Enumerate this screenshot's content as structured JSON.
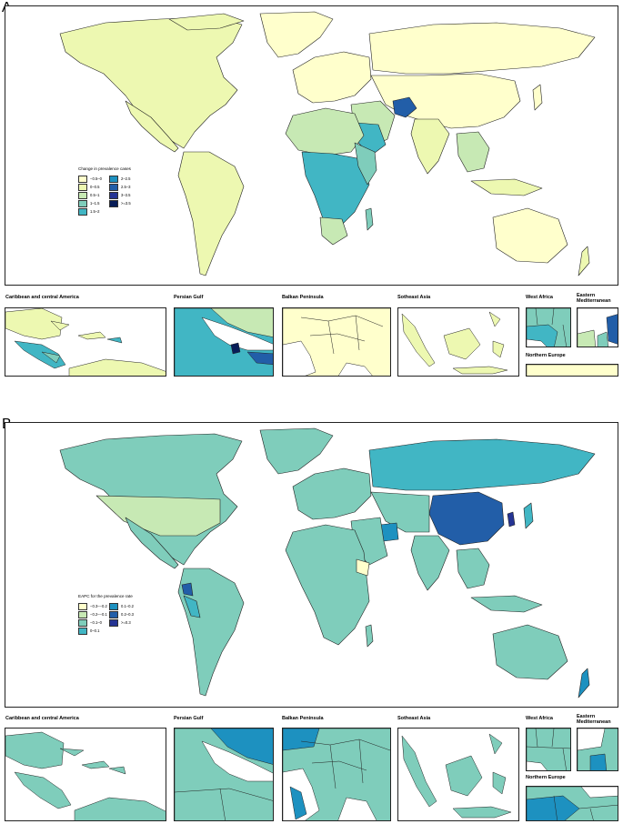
{
  "colors": {
    "pale": "#ffffcc",
    "c1": "#d9f0a3",
    "c2": "#c7e9b4",
    "c3": "#7fcdbb",
    "c4": "#41b6c4",
    "c5": "#1d91c0",
    "c6": "#225ea8",
    "c7": "#253494",
    "c8": "#081d58"
  },
  "panel_a": {
    "letter": "A",
    "legend": {
      "title": "Change in prevalence cases",
      "items": [
        {
          "label": "−0.5–0",
          "color": "#ffffcc"
        },
        {
          "label": "0–0.5",
          "color": "#edf8b1"
        },
        {
          "label": "0.5–1",
          "color": "#c7e9b4"
        },
        {
          "label": "1–1.5",
          "color": "#7fcdbb"
        },
        {
          "label": "1.5–2",
          "color": "#41b6c4"
        },
        {
          "label": "2–2.5",
          "color": "#1d91c0"
        },
        {
          "label": "2.5–3",
          "color": "#225ea8"
        },
        {
          "label": "3–3.5",
          "color": "#253494"
        },
        {
          "label": ">=3.5",
          "color": "#081d58"
        }
      ]
    },
    "insets": {
      "caribbean": "Caribbean and central America",
      "persian_gulf": "Persian Gulf",
      "balkan": "Balkan Peninsula",
      "southeast_asia": "Sotheast Asia",
      "west_africa": "West Africa",
      "eastern_med_line1": "Eastern",
      "eastern_med_line2": "Mediterranean",
      "northern_europe": "Northern Europe"
    }
  },
  "panel_b": {
    "letter": "B",
    "legend": {
      "title": "EAPC for the prevalence rate",
      "items": [
        {
          "label": "−0.3–−0.2",
          "color": "#ffffcc"
        },
        {
          "label": "−0.2–−0.1",
          "color": "#c7e9b4"
        },
        {
          "label": "−0.1–0",
          "color": "#7fcdbb"
        },
        {
          "label": "0–0.1",
          "color": "#41b6c4"
        },
        {
          "label": "0.1–0.2",
          "color": "#1d91c0"
        },
        {
          "label": "0.2–0.3",
          "color": "#225ea8"
        },
        {
          "label": ">=0.3",
          "color": "#253494"
        }
      ]
    },
    "insets": {
      "caribbean": "Caribbean and central America",
      "persian_gulf": "Persian Gulf",
      "balkan": "Balkan Peninsula",
      "southeast_asia": "Sotheast Asia",
      "west_africa": "West Africa",
      "eastern_med_line1": "Eastern",
      "eastern_med_line2": "Mediterranean",
      "northern_europe": "Northern Europe"
    }
  }
}
